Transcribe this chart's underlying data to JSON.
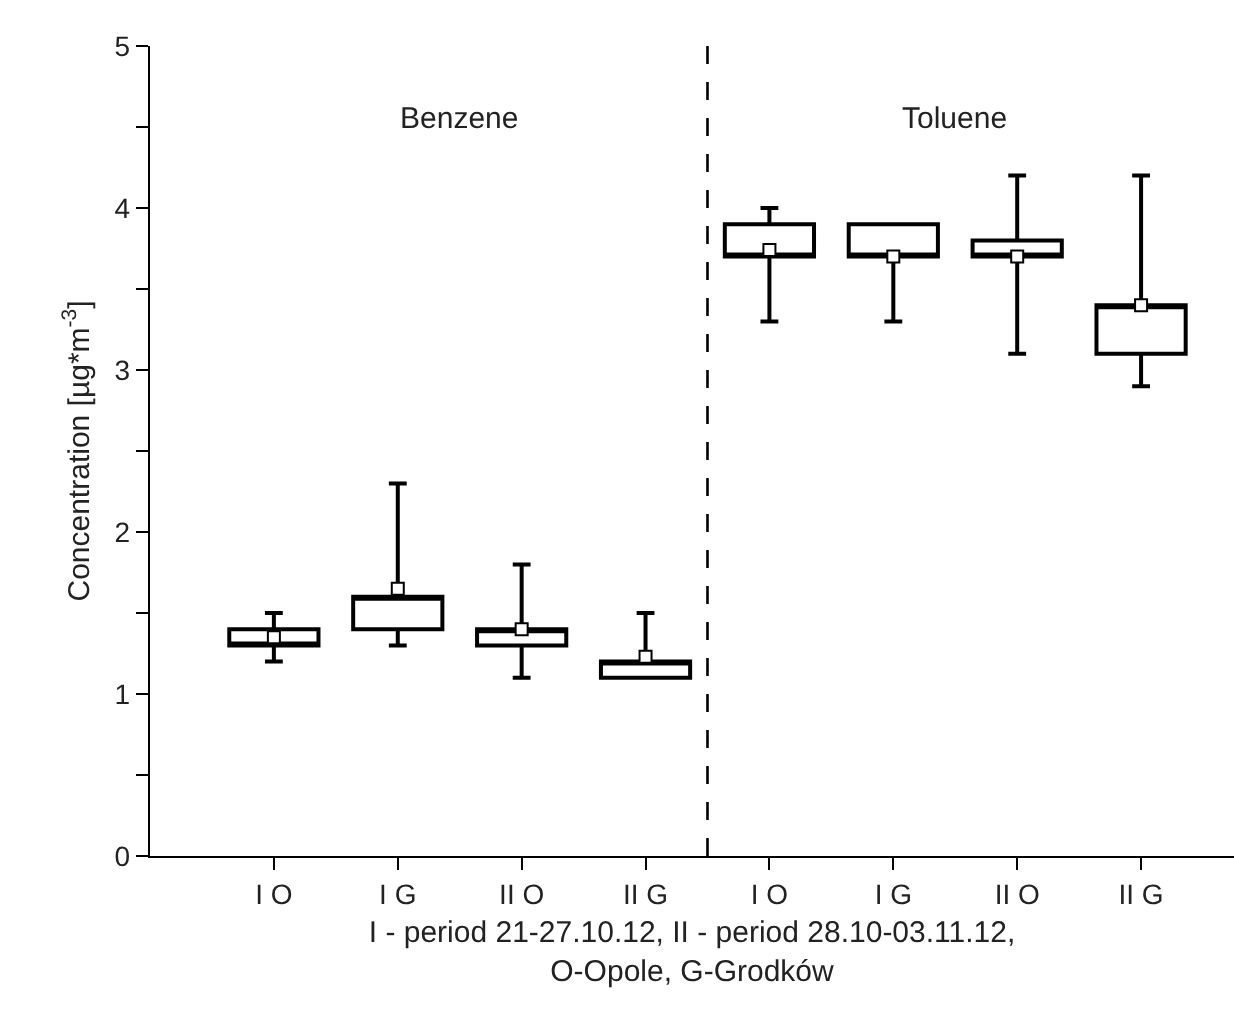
{
  "chart_data": {
    "type": "box",
    "ylabel": "Concentration [µg*m$^{-3}$]",
    "xlabel": "I - period 21-27.10.12, II - period 28.10-03.11.12,\nO-Opole, G-Grodków",
    "categories": [
      "I O",
      "I G",
      "II O",
      "II G",
      "I O",
      "I G",
      "II O",
      "II G"
    ],
    "boxes": [
      {
        "low": 1.2,
        "q1": 1.3,
        "median": 1.3,
        "q3": 1.4,
        "high": 1.5,
        "mean": 1.35
      },
      {
        "low": 1.3,
        "q1": 1.4,
        "median": 1.6,
        "q3": 1.6,
        "high": 2.3,
        "mean": 1.65
      },
      {
        "low": 1.1,
        "q1": 1.3,
        "median": 1.4,
        "q3": 1.4,
        "high": 1.8,
        "mean": 1.4
      },
      {
        "low": 1.1,
        "q1": 1.1,
        "median": 1.2,
        "q3": 1.2,
        "high": 1.5,
        "mean": 1.23
      },
      {
        "low": 3.3,
        "q1": 3.7,
        "median": 3.7,
        "q3": 3.9,
        "high": 4.0,
        "mean": 3.74
      },
      {
        "low": 3.3,
        "q1": 3.7,
        "median": 3.7,
        "q3": 3.9,
        "high": 3.9,
        "mean": 3.7
      },
      {
        "low": 3.1,
        "q1": 3.7,
        "median": 3.7,
        "q3": 3.8,
        "high": 4.2,
        "mean": 3.7
      },
      {
        "low": 2.9,
        "q1": 3.1,
        "median": 3.4,
        "q3": 3.4,
        "high": 4.2,
        "mean": 3.4
      }
    ],
    "color": "#000000",
    "ylim": [
      0,
      5
    ],
    "yticks": [
      0,
      {
        "value": 0.5,
        "label": null
      },
      1,
      {
        "value": 1.5,
        "label": null
      },
      2,
      {
        "value": 2.5,
        "label": null
      },
      3,
      {
        "value": 3.5,
        "label": null
      },
      4,
      {
        "value": 4.5,
        "label": null
      },
      5
    ],
    "annotations": [
      "Benzene",
      "Toluene"
    ]
  }
}
